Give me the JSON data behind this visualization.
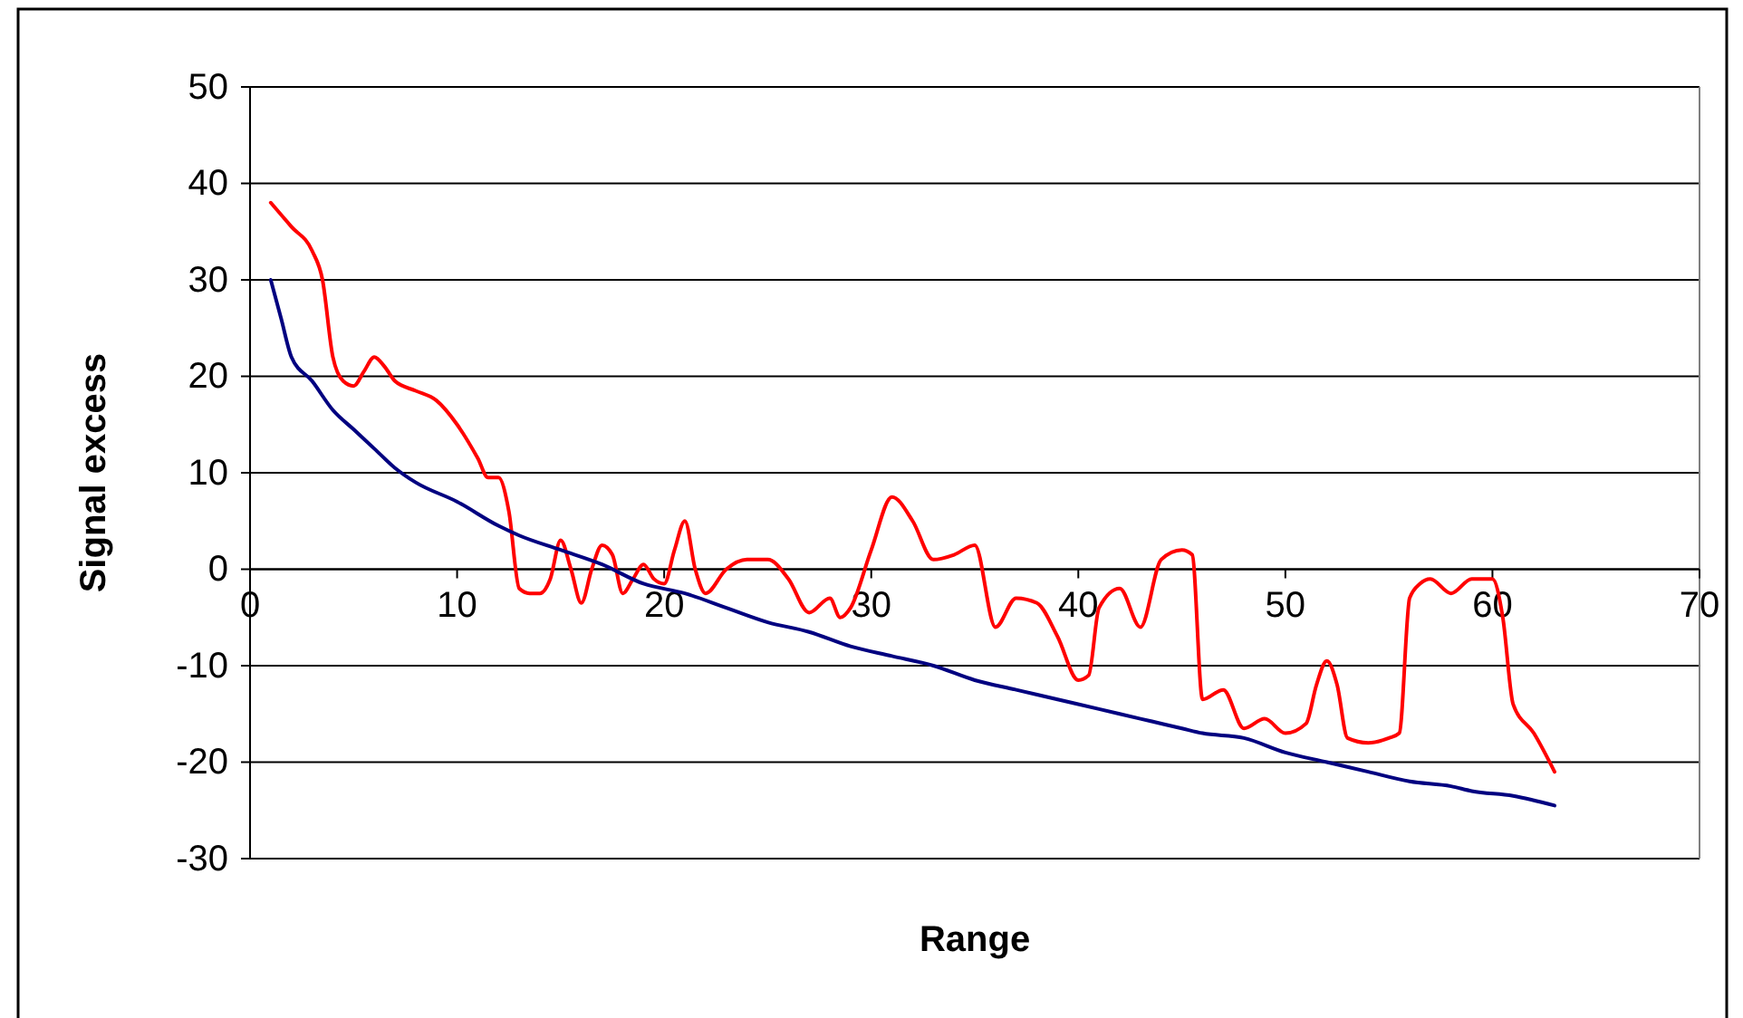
{
  "chart_data": {
    "type": "line",
    "xlabel": "Range",
    "ylabel": "Signal excess",
    "xlim": [
      0,
      70
    ],
    "xticks": [
      0,
      10,
      20,
      30,
      40,
      50,
      60,
      70
    ],
    "ylim": [
      -30,
      50
    ],
    "yticks": [
      -30,
      -20,
      -10,
      0,
      10,
      20,
      30,
      40,
      50
    ],
    "grid": "y",
    "marker": "none",
    "line_style": "solid",
    "series": [
      {
        "color": "#ff0000",
        "x": [
          1,
          2,
          3,
          3.5,
          4,
          4.5,
          5,
          5.5,
          6,
          6.5,
          7,
          8,
          9,
          10,
          11,
          11.5,
          12,
          12.5,
          13,
          13.5,
          14,
          14.5,
          15,
          15.5,
          16,
          16.5,
          17,
          17.5,
          18,
          18.5,
          19,
          19.5,
          20,
          20.5,
          21,
          21.5,
          22,
          23,
          24,
          25,
          26,
          27,
          28,
          28.5,
          29,
          30,
          31,
          32,
          33,
          34,
          35,
          36,
          37,
          38,
          39,
          40,
          40.5,
          41,
          42,
          43,
          44,
          45,
          45.5,
          46,
          47,
          48,
          49,
          50,
          51,
          51.5,
          52,
          52.5,
          53,
          54,
          55,
          55.5,
          56,
          56.5,
          57,
          58,
          59,
          60,
          60.5,
          61,
          62,
          63
        ],
        "values": [
          38,
          35.5,
          33,
          30,
          22,
          19.5,
          19,
          20.5,
          22,
          21,
          19.5,
          18.5,
          17.5,
          15,
          11.5,
          9.5,
          9.5,
          6,
          -2,
          -2.5,
          -2.5,
          -1,
          3,
          0,
          -3.5,
          0,
          2.5,
          1.5,
          -2.5,
          -1,
          0.5,
          -1,
          -1.5,
          2,
          5,
          0,
          -2.5,
          0,
          1,
          1,
          -1,
          -4.5,
          -3,
          -5,
          -4,
          2,
          7.5,
          5,
          1,
          1.5,
          2.5,
          -6,
          -3,
          -3.5,
          -7,
          -11.5,
          -11,
          -4,
          -2,
          -6,
          1,
          2,
          1.5,
          -13.5,
          -12.5,
          -16.5,
          -15.5,
          -17,
          -16,
          -12,
          -9.5,
          -12,
          -17.5,
          -18,
          -17.5,
          -17,
          -3,
          -1.5,
          -1,
          -2.5,
          -1,
          -1,
          -5,
          -14,
          -17,
          -21
        ]
      },
      {
        "color": "#000080",
        "x": [
          1,
          1.5,
          2,
          3,
          4,
          5,
          6,
          7,
          8,
          10,
          12,
          13,
          15,
          17,
          19,
          21,
          23,
          25,
          27,
          29,
          31,
          33,
          35,
          37,
          39,
          41,
          43,
          45,
          46,
          48,
          50,
          52,
          54,
          56,
          58,
          59,
          61,
          63
        ],
        "values": [
          30,
          26,
          22,
          19.5,
          16.5,
          14.5,
          12.5,
          10.5,
          9,
          7,
          4.5,
          3.5,
          2,
          0.5,
          -1.5,
          -2.5,
          -4,
          -5.5,
          -6.5,
          -8,
          -9,
          -10,
          -11.5,
          -12.5,
          -13.5,
          -14.5,
          -15.5,
          -16.5,
          -17,
          -17.5,
          -19,
          -20,
          -21,
          -22,
          -22.5,
          -23,
          -23.5,
          -24.5
        ]
      }
    ]
  }
}
